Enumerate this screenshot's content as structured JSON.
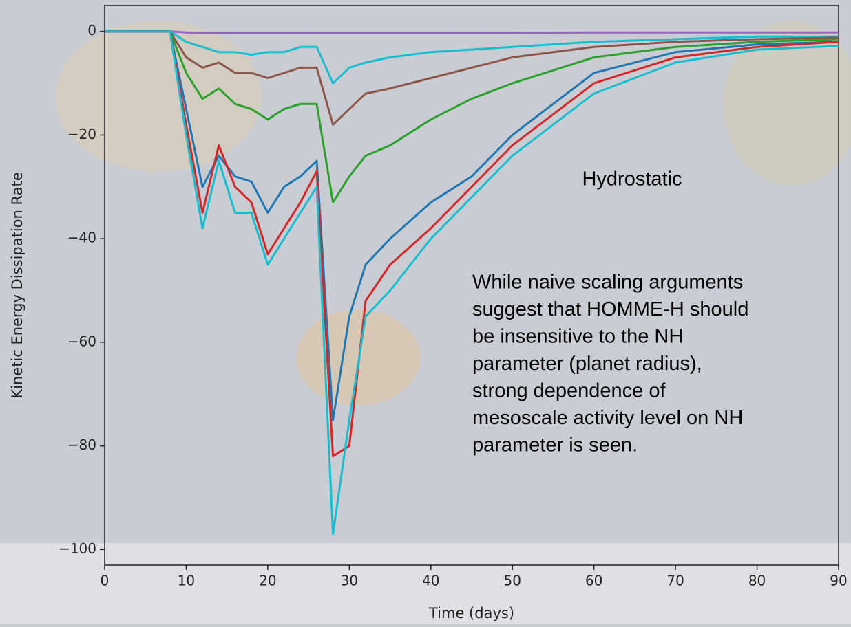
{
  "chart_data": {
    "type": "line",
    "x_label": "Time (days)",
    "y_label": "Kinetic Energy Dissipation Rate",
    "annotation_title": "Hydrostatic",
    "annotation_lines": [
      "While naive scaling arguments",
      "suggest that HOMME-H should",
      "be insensitive to the NH",
      "parameter (planet radius),",
      "strong dependence of",
      "mesoscale activity level on NH",
      "parameter is seen."
    ],
    "xlim": [
      0,
      90
    ],
    "ylim": [
      -103,
      5
    ],
    "xticks": [
      0,
      10,
      20,
      30,
      40,
      50,
      60,
      70,
      80,
      90
    ],
    "yticks": [
      0,
      {
        "value": -20,
        "label": "−20"
      },
      {
        "value": -40,
        "label": "−40"
      },
      {
        "value": -60,
        "label": "−60"
      },
      {
        "value": -80,
        "label": "−80"
      },
      {
        "value": -100,
        "label": "−100"
      }
    ],
    "x": [
      0,
      8,
      10,
      12,
      14,
      16,
      18,
      20,
      22,
      24,
      26,
      28,
      30,
      32,
      35,
      40,
      45,
      50,
      60,
      70,
      80,
      90
    ],
    "series": [
      {
        "color": "#9467bd",
        "values": [
          0,
          0,
          -0.2,
          -0.3,
          -0.3,
          -0.3,
          -0.3,
          -0.3,
          -0.3,
          -0.3,
          -0.3,
          -0.3,
          -0.3,
          -0.3,
          -0.3,
          -0.3,
          -0.3,
          -0.3,
          -0.2,
          -0.2,
          -0.2,
          -0.2
        ]
      },
      {
        "color": "#17becf",
        "values": [
          0,
          0,
          -2,
          -3,
          -4,
          -4,
          -4.5,
          -4,
          -4,
          -3,
          -3,
          -10,
          -7,
          -6,
          -5,
          -4,
          -3.5,
          -3,
          -2,
          -1.5,
          -1,
          -1
        ]
      },
      {
        "color": "#8c564b",
        "values": [
          0,
          0,
          -5,
          -7,
          -6,
          -8,
          -8,
          -9,
          -8,
          -7,
          -7,
          -18,
          -15,
          -12,
          -11,
          -9,
          -7,
          -5,
          -3,
          -2,
          -1.5,
          -1.2
        ]
      },
      {
        "color": "#2ca02c",
        "values": [
          0,
          0,
          -8,
          -13,
          -11,
          -14,
          -15,
          -17,
          -15,
          -14,
          -14,
          -33,
          -28,
          -24,
          -22,
          -17,
          -13,
          -10,
          -5,
          -3,
          -2,
          -1.5
        ]
      },
      {
        "color": "#1f77b4",
        "values": [
          0,
          0,
          -15,
          -30,
          -24,
          -28,
          -29,
          -35,
          -30,
          -28,
          -25,
          -75,
          -55,
          -45,
          -40,
          -33,
          -28,
          -20,
          -8,
          -4,
          -2.5,
          -2
        ]
      },
      {
        "color": "#d62728",
        "values": [
          0,
          0,
          -18,
          -35,
          -22,
          -30,
          -33,
          -43,
          -38,
          -33,
          -27,
          -82,
          -80,
          -52,
          -45,
          -38,
          -30,
          -22,
          -10,
          -5,
          -3,
          -2
        ]
      },
      {
        "color": "#17becf",
        "values": [
          0,
          0,
          -20,
          -38,
          -25,
          -35,
          -35,
          -45,
          -40,
          -35,
          -30,
          -97,
          -75,
          -55,
          -50,
          -40,
          -32,
          -24,
          -12,
          -6,
          -3.5,
          -2.8
        ]
      }
    ]
  }
}
